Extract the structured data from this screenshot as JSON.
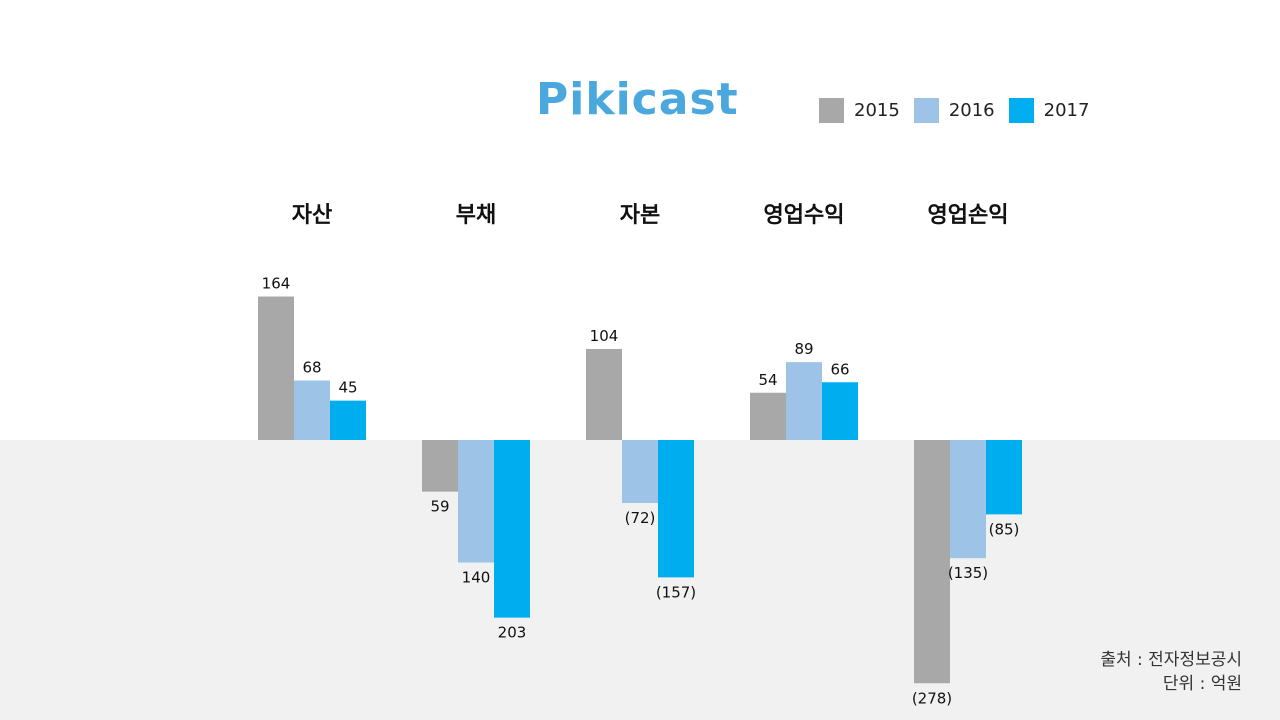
{
  "logo_text": "Pikicast",
  "source": {
    "line1": "출처 : 전자정보공시",
    "line2": "단위 : 억원"
  },
  "chart_data": {
    "type": "bar",
    "categories": [
      "자산",
      "부채",
      "자본",
      "영업수익",
      "영업손익"
    ],
    "series": [
      {
        "name": "2015",
        "color": "#a9a8a9",
        "values": [
          164,
          -59,
          104,
          54,
          -278
        ]
      },
      {
        "name": "2016",
        "color": "#9dc3e6",
        "values": [
          68,
          -140,
          -72,
          89,
          -135
        ]
      },
      {
        "name": "2017",
        "color": "#00adef",
        "values": [
          45,
          -203,
          -157,
          66,
          -85
        ]
      }
    ],
    "value_labels": [
      [
        "164",
        "59",
        "104",
        "54",
        "(278)"
      ],
      [
        "68",
        "140",
        "(72)",
        "89",
        "(135)"
      ],
      [
        "45",
        "203",
        "(157)",
        "66",
        "(85)"
      ]
    ],
    "legend_position": "top-right",
    "grid": false
  }
}
